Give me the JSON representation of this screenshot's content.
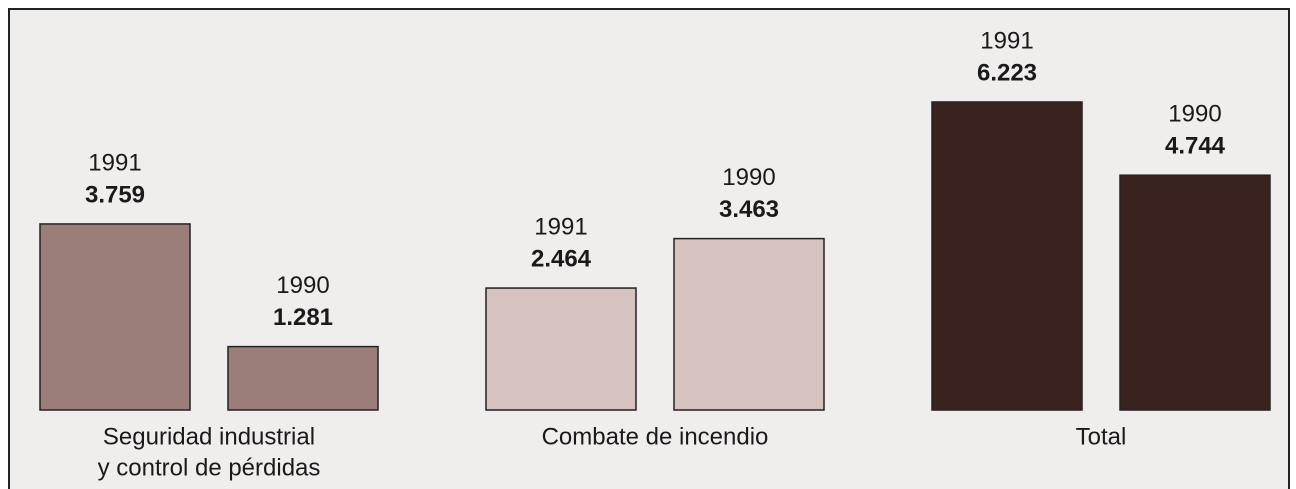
{
  "chart_data": {
    "type": "bar",
    "categories": [
      [
        "Seguridad industrial",
        "y control de pérdidas"
      ],
      [
        "Combate de incendio"
      ],
      [
        "Total"
      ]
    ],
    "colors": [
      "#9b7e79",
      "#d6c3c0",
      "#3a221f"
    ],
    "series": [
      {
        "name": "1991",
        "values": [
          3.759,
          2.464,
          6.223
        ]
      },
      {
        "name": "1990",
        "values": [
          1.281,
          3.463,
          4.744
        ]
      }
    ]
  }
}
